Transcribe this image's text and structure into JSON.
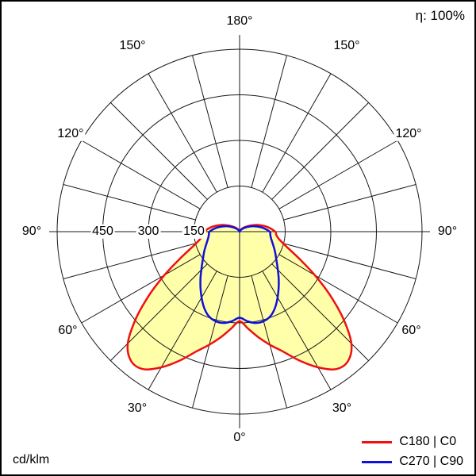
{
  "header": {
    "efficiency": "η: 100%"
  },
  "footer": {
    "unit": "cd/klm"
  },
  "legend": [
    {
      "label": "C180 | C0",
      "color": "#ee1111"
    },
    {
      "label": "C270 | C90",
      "color": "#1111dd"
    }
  ],
  "chart_data": {
    "type": "polar-intensity-distribution",
    "title": "Luminous intensity distribution curve",
    "unit": "cd/klm",
    "efficiency": "η: 100%",
    "radial_max": 600,
    "radial_rings": [
      150,
      300,
      450,
      600
    ],
    "radial_tick_labels": [
      "150",
      "300",
      "450"
    ],
    "spoke_step_deg": 15,
    "angle_labels": [
      {
        "text": "180°",
        "gamma": 180,
        "sides": [
          "center"
        ]
      },
      {
        "text": "150°",
        "gamma": 150,
        "sides": [
          "left",
          "right"
        ]
      },
      {
        "text": "120°",
        "gamma": 120,
        "sides": [
          "left",
          "right"
        ]
      },
      {
        "text": "90°",
        "gamma": 90,
        "sides": [
          "left",
          "right"
        ]
      },
      {
        "text": "60°",
        "gamma": 60,
        "sides": [
          "left",
          "right"
        ]
      },
      {
        "text": "30°",
        "gamma": 30,
        "sides": [
          "left",
          "right"
        ]
      },
      {
        "text": "0°",
        "gamma": 0,
        "sides": [
          "center"
        ]
      }
    ],
    "series": [
      {
        "name": "C180 | C0",
        "color": "#ee1111",
        "fill": "#ffffaa",
        "gamma_deg": [
          0,
          5,
          10,
          15,
          20,
          25,
          30,
          35,
          40,
          45,
          50,
          55,
          60,
          65,
          70,
          75,
          80,
          85,
          90,
          100,
          110,
          120,
          130,
          140,
          150,
          160,
          170,
          180
        ],
        "values": [
          295,
          320,
          352,
          385,
          420,
          468,
          515,
          552,
          555,
          520,
          445,
          362,
          285,
          222,
          177,
          148,
          130,
          121,
          117,
          92,
          64,
          40,
          24,
          13,
          7,
          3,
          1,
          0
        ]
      },
      {
        "name": "C270 | C90",
        "color": "#1111dd",
        "fill": null,
        "gamma_deg": [
          0,
          5,
          10,
          15,
          20,
          25,
          30,
          35,
          40,
          45,
          50,
          55,
          60,
          65,
          70,
          75,
          80,
          85,
          90,
          100,
          110,
          120,
          130,
          140,
          150,
          160,
          170,
          180
        ],
        "values": [
          283,
          296,
          305,
          305,
          296,
          276,
          250,
          224,
          200,
          178,
          160,
          146,
          135,
          125,
          116,
          109,
          104,
          101,
          99,
          76,
          52,
          32,
          18,
          9,
          4,
          2,
          1,
          0
        ]
      }
    ]
  }
}
